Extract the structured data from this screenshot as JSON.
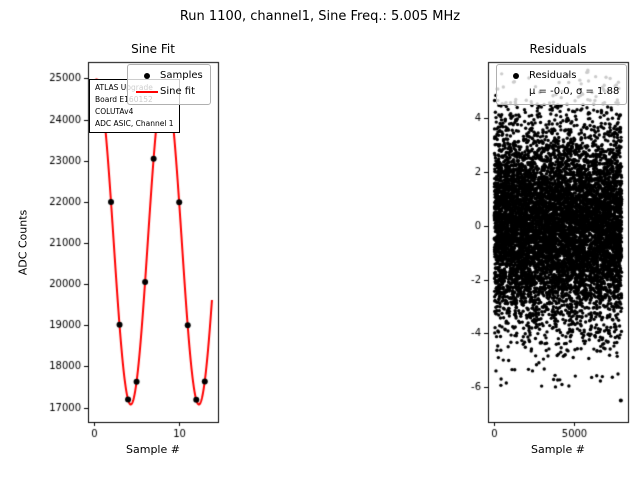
{
  "figure": {
    "suptitle": "Run 1100, channel1, Sine Freq.: 5.005 MHz",
    "background": "#ffffff"
  },
  "chart_data": [
    {
      "type": "line",
      "title": "Sine Fit",
      "xlabel": "Sample #",
      "ylabel": "ADC Counts",
      "xlim": [
        -0.7,
        14.55
      ],
      "ylim": [
        16650,
        25400
      ],
      "x_ticks": [
        0,
        10
      ],
      "y_ticks": [
        17000,
        18000,
        19000,
        20000,
        21000,
        22000,
        23000,
        24000,
        25000
      ],
      "grid": false,
      "samples": {
        "label": "Samples",
        "color": "#000000",
        "x": [
          0,
          1,
          2,
          3,
          4,
          5,
          6,
          7,
          8,
          9,
          10,
          11,
          12,
          13
        ],
        "y": [
          24853,
          24421,
          21996,
          19011,
          17194,
          17631,
          20053,
          23046,
          24857,
          24414,
          21993,
          18999,
          17192,
          17637
        ]
      },
      "fit": {
        "label": "Sine fit",
        "color": "#ff0000",
        "offset": 21025,
        "amplitude": 3950,
        "radians_per_sample": 0.78618,
        "phase": -0.25,
        "x_start": 0,
        "x_end": 13.85
      },
      "annotation": {
        "lines": [
          "ATLAS Upgrade",
          "Board E160152",
          "COLUTAv4",
          "ADC ASIC, Channel 1"
        ]
      }
    },
    {
      "type": "scatter",
      "title": "Residuals",
      "xlabel": "Sample #",
      "xlim": [
        -400,
        8400
      ],
      "ylim": [
        -7.3,
        6.1
      ],
      "x_ticks": [
        0,
        5000
      ],
      "y_ticks": [
        -6,
        -4,
        -2,
        0,
        2,
        4
      ],
      "grid": false,
      "residuals": {
        "label": "Residuals",
        "stats_label": "μ = -0.0, σ = 1.88",
        "mu": -0.0,
        "sigma": 1.88,
        "n_points": 8000,
        "x_range": [
          0,
          8000
        ],
        "seed": 42,
        "color": "#000000",
        "outlier": {
          "x": 7950,
          "y": -6.5
        }
      }
    }
  ]
}
